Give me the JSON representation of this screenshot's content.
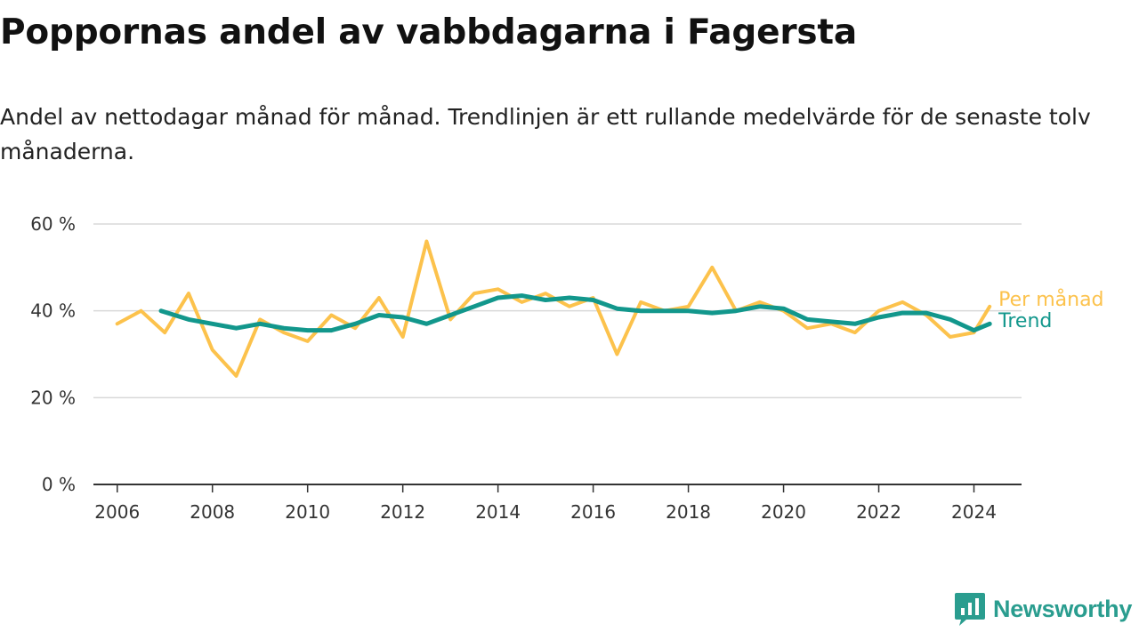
{
  "page": {
    "title": "Poppornas andel av vabbdagarna i Fagersta",
    "subtitle": "Andel av nettodagar månad för månad. Trendlinjen är ett rullande medelvärde för de senaste tolv månaderna.",
    "brand": "Newsworthy"
  },
  "colors": {
    "monthly": "#fcc24c",
    "trend": "#12978c",
    "grid": "#d9d9d9",
    "axis": "#333333",
    "brand": "#2a9d8f"
  },
  "chart_data": {
    "type": "line",
    "title": "Poppornas andel av vabbdagarna i Fagersta",
    "subtitle": "Andel av nettodagar månad för månad. Trendlinjen är ett rullande medelvärde för de senaste tolv månaderna.",
    "xlabel": "",
    "ylabel": "",
    "xlim": [
      2005.5,
      2025.0
    ],
    "ylim": [
      0,
      60
    ],
    "y_ticks": [
      0,
      20,
      40,
      60
    ],
    "y_tick_labels": [
      "0 %",
      "20 %",
      "40 %",
      "60 %"
    ],
    "x_ticks": [
      2006,
      2008,
      2010,
      2012,
      2014,
      2016,
      2018,
      2020,
      2022,
      2024
    ],
    "x_tick_labels": [
      "2006",
      "2008",
      "2010",
      "2012",
      "2014",
      "2016",
      "2018",
      "2020",
      "2022",
      "2024"
    ],
    "grid": true,
    "legend": "direct labels at right end of lines",
    "series": [
      {
        "name": "Per månad",
        "x": [
          2006.0,
          2006.5,
          2007.0,
          2007.5,
          2008.0,
          2008.5,
          2009.0,
          2009.5,
          2010.0,
          2010.5,
          2011.0,
          2011.5,
          2012.0,
          2012.5,
          2013.0,
          2013.5,
          2014.0,
          2014.5,
          2015.0,
          2015.5,
          2016.0,
          2016.5,
          2017.0,
          2017.5,
          2018.0,
          2018.5,
          2019.0,
          2019.5,
          2020.0,
          2020.5,
          2021.0,
          2021.5,
          2022.0,
          2022.5,
          2023.0,
          2023.5,
          2024.0,
          2024.33
        ],
        "values": [
          37,
          40,
          35,
          44,
          31,
          25,
          38,
          35,
          33,
          39,
          36,
          43,
          34,
          56,
          38,
          44,
          45,
          42,
          44,
          41,
          43,
          30,
          42,
          40,
          41,
          50,
          40,
          42,
          40,
          36,
          37,
          35,
          40,
          42,
          39,
          34,
          35,
          41
        ]
      },
      {
        "name": "Trend",
        "x": [
          2006.92,
          2007.5,
          2008.0,
          2008.5,
          2009.0,
          2009.5,
          2010.0,
          2010.5,
          2011.0,
          2011.5,
          2012.0,
          2012.5,
          2013.0,
          2013.5,
          2014.0,
          2014.5,
          2015.0,
          2015.5,
          2016.0,
          2016.5,
          2017.0,
          2017.5,
          2018.0,
          2018.5,
          2019.0,
          2019.5,
          2020.0,
          2020.5,
          2021.0,
          2021.5,
          2022.0,
          2022.5,
          2023.0,
          2023.5,
          2024.0,
          2024.33
        ],
        "values": [
          40,
          38,
          37,
          36,
          37,
          36,
          35.5,
          35.5,
          37,
          39,
          38.5,
          37,
          39,
          41,
          43,
          43.5,
          42.5,
          43,
          42.5,
          40.5,
          40,
          40,
          40,
          39.5,
          40,
          41,
          40.5,
          38,
          37.5,
          37,
          38.5,
          39.5,
          39.5,
          38,
          35.5,
          37
        ]
      }
    ]
  }
}
